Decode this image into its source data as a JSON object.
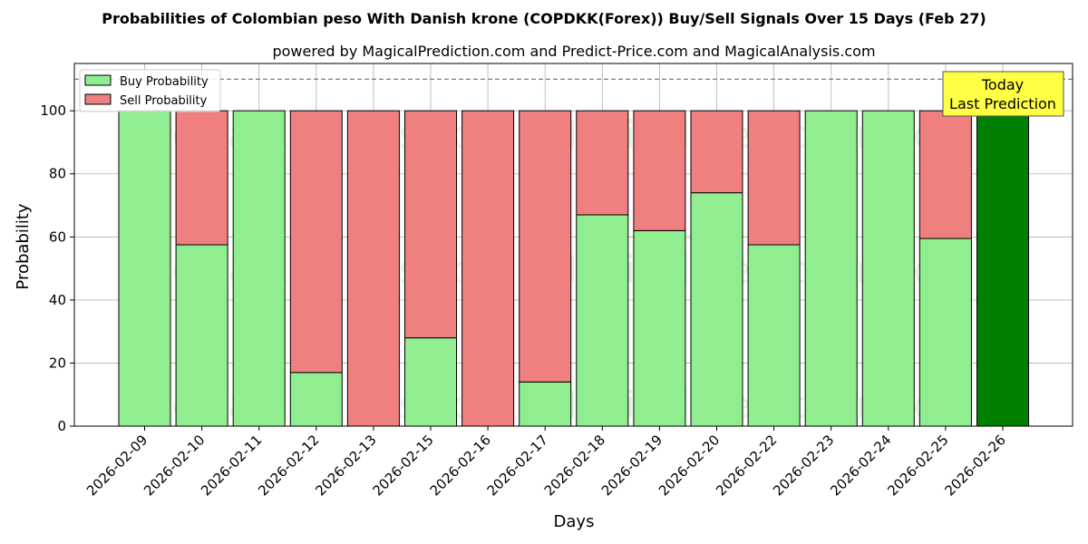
{
  "title": "Probabilities of Colombian peso With Danish krone (COPDKK(Forex)) Buy/Sell Signals Over 15 Days (Feb 27)",
  "subtitle": "powered by MagicalPrediction.com and Predict-Price.com and MagicalAnalysis.com",
  "watermarks": [
    "MagicalAnalysis.com",
    "MagicalPrediction.com"
  ],
  "annotation": {
    "line1": "Today",
    "line2": "Last Prediction"
  },
  "colors": {
    "buy": "#90ee90",
    "sell": "#f08080",
    "today": "#008000",
    "annotation_bg": "#ffff44",
    "reference_line": "#808080"
  },
  "chart_data": {
    "type": "bar",
    "stacked": true,
    "xlabel": "Days",
    "ylabel": "Probability",
    "ylim": [
      0,
      115
    ],
    "yticks": [
      0,
      20,
      40,
      60,
      80,
      100
    ],
    "reference_line": 110,
    "grid": true,
    "legend_position": "top-left",
    "categories": [
      "2026-02-09",
      "2026-02-10",
      "2026-02-11",
      "2026-02-12",
      "2026-02-13",
      "2026-02-15",
      "2026-02-16",
      "2026-02-17",
      "2026-02-18",
      "2026-02-19",
      "2026-02-20",
      "2026-02-22",
      "2026-02-23",
      "2026-02-24",
      "2026-02-25",
      "2026-02-26"
    ],
    "series": [
      {
        "name": "Buy Probability",
        "values": [
          100,
          57.5,
          100,
          17,
          0,
          28,
          0,
          14,
          67,
          62,
          74,
          57.5,
          100,
          100,
          59.5,
          100
        ]
      },
      {
        "name": "Sell Probability",
        "values": [
          0,
          42.5,
          0,
          83,
          100,
          72,
          100,
          86,
          33,
          38,
          26,
          42.5,
          0,
          0,
          40.5,
          0
        ]
      }
    ]
  }
}
